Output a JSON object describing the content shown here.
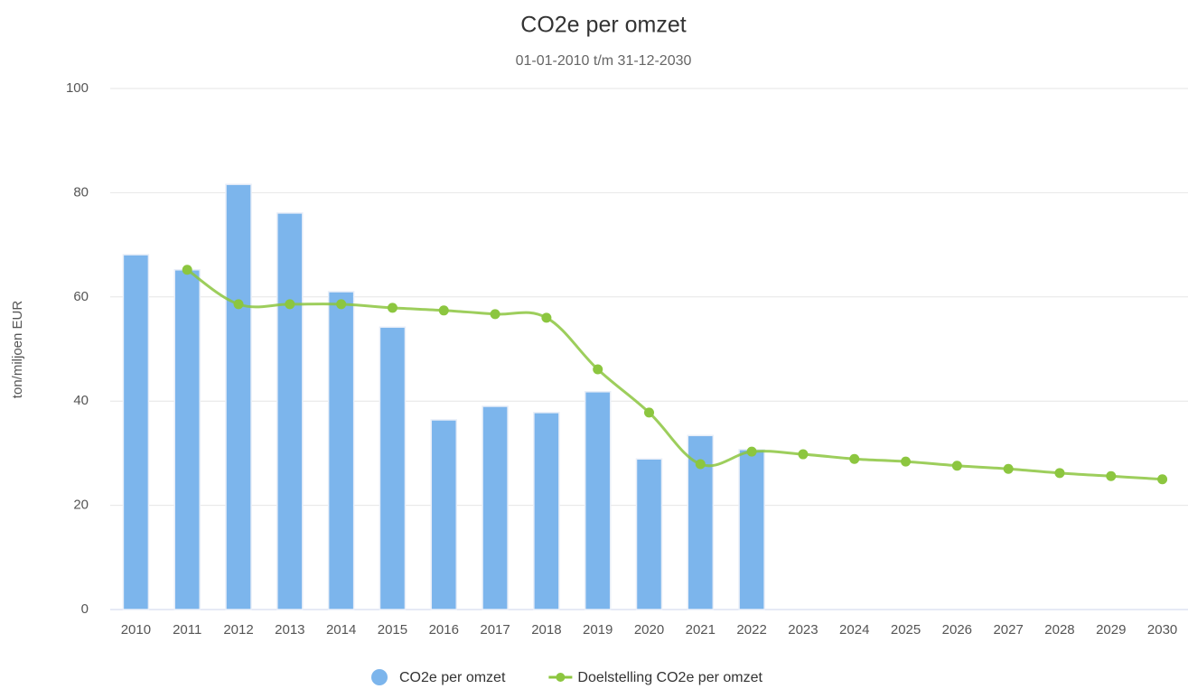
{
  "chart_data": {
    "type": "bar_line",
    "title": "CO2e per omzet",
    "subtitle": "01-01-2010 t/m 31-12-2030",
    "y_label": "ton/miljoen EUR",
    "categories": [
      "2010",
      "2011",
      "2012",
      "2013",
      "2014",
      "2015",
      "2016",
      "2017",
      "2018",
      "2019",
      "2020",
      "2021",
      "2022",
      "2023",
      "2024",
      "2025",
      "2026",
      "2027",
      "2028",
      "2029",
      "2030"
    ],
    "series": [
      {
        "name": "CO2e per omzet",
        "type": "bar",
        "color": "#7cb5ec",
        "values": [
          68.1,
          65.2,
          81.6,
          76.1,
          61,
          54.2,
          36.4,
          39,
          37.8,
          41.8,
          28.9,
          33.4,
          30.7,
          null,
          null,
          null,
          null,
          null,
          null,
          null,
          null
        ]
      },
      {
        "name": "Doelstelling CO2e per omzet",
        "type": "line",
        "color": "#8cc63f",
        "values": [
          null,
          65.2,
          58.6,
          58.6,
          58.6,
          57.9,
          57.4,
          56.7,
          56,
          46.1,
          37.8,
          27.9,
          30.3,
          29.8,
          28.9,
          28.4,
          27.6,
          27,
          26.2,
          25.6,
          25
        ]
      }
    ],
    "ylim": [
      0,
      100
    ],
    "yticks": [
      0,
      20,
      40,
      60,
      80,
      100
    ],
    "grid": true,
    "legend": "bottom"
  }
}
